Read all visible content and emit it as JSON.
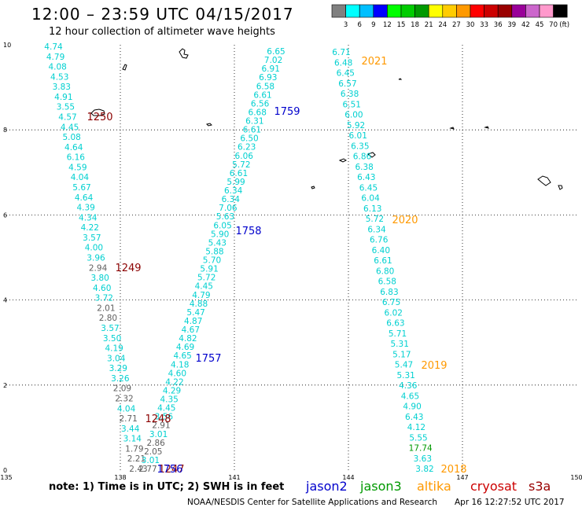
{
  "title": "12:00 – 23:59 UTC 04/15/2017",
  "subtitle": "12 hour collection of altimeter wave heights",
  "colorbar": {
    "colors": [
      "#808080",
      "#00ffff",
      "#00bfff",
      "#0000ff",
      "#00ff00",
      "#00cc00",
      "#009900",
      "#ffff00",
      "#ffcc00",
      "#ff9900",
      "#ff0000",
      "#cc0000",
      "#990000",
      "#990099",
      "#cc66cc",
      "#ff99cc",
      "#000000"
    ],
    "labels": [
      "3",
      "6",
      "9",
      "12",
      "15",
      "18",
      "21",
      "24",
      "27",
      "30",
      "33",
      "36",
      "39",
      "42",
      "45",
      "70",
      "(ft)"
    ]
  },
  "x_ticks": [
    "135",
    "138",
    "141",
    "144",
    "147",
    "150"
  ],
  "y_ticks": [
    "0",
    "2",
    "4",
    "6",
    "8",
    "10"
  ],
  "pass_labels": [
    {
      "text": "1250",
      "color": "#8b0000"
    },
    {
      "text": "1249",
      "color": "#8b0000"
    },
    {
      "text": "1248",
      "color": "#8b0000"
    },
    {
      "text": "1247",
      "color": "#8b0000"
    },
    {
      "text": "1759",
      "color": "#0000cc"
    },
    {
      "text": "1758",
      "color": "#0000cc"
    },
    {
      "text": "1757",
      "color": "#0000cc"
    },
    {
      "text": "1756",
      "color": "#0000cc"
    },
    {
      "text": "2021",
      "color": "#ff9900"
    },
    {
      "text": "2020",
      "color": "#ff9900"
    },
    {
      "text": "2019",
      "color": "#ff9900"
    },
    {
      "text": "2018",
      "color": "#ff9900"
    }
  ],
  "tracks": {
    "cryosat": [
      "4.74",
      "4.79",
      "4.08",
      "4.53",
      "3.83",
      "4.91",
      "3.55",
      "4.57",
      "4.45",
      "5.08",
      "4.64",
      "6.16",
      "4.59",
      "4.04",
      "5.67",
      "4.64",
      "4.39",
      "4.34",
      "4.22",
      "3.57",
      "4.00",
      "3.96",
      "2.94",
      "3.80",
      "4.60",
      "3.72",
      "2.01",
      "2.80",
      "3.57",
      "3.50",
      "4.19",
      "3.04",
      "3.29",
      "3.26",
      "2.09",
      "2.32",
      "4.04",
      "2.71",
      "3.44",
      "3.14",
      "1.79",
      "2.21",
      "2.43"
    ],
    "cryosat_colors": [
      "c",
      "c",
      "c",
      "c",
      "c",
      "c",
      "c",
      "c",
      "c",
      "c",
      "c",
      "c",
      "c",
      "c",
      "c",
      "c",
      "c",
      "c",
      "c",
      "c",
      "c",
      "c",
      "g",
      "c",
      "c",
      "c",
      "g",
      "g",
      "c",
      "c",
      "c",
      "c",
      "c",
      "c",
      "g",
      "g",
      "c",
      "g",
      "c",
      "c",
      "g",
      "g",
      "g"
    ],
    "jason2": [
      "6.65",
      "7.02",
      "6.91",
      "6.93",
      "6.58",
      "6.61",
      "6.56",
      "6.68",
      "6.31",
      "6.61",
      "6.50",
      "6.23",
      "6.06",
      "5.72",
      "6.61",
      "5.99",
      "6.34",
      "6.34",
      "7.06",
      "5.63",
      "6.05",
      "5.90",
      "5.43",
      "5.88",
      "5.70",
      "5.91",
      "5.72",
      "4.45",
      "4.79",
      "4.88",
      "5.47",
      "4.87",
      "4.67",
      "4.82",
      "4.69",
      "4.65",
      "4.18",
      "4.60",
      "4.22",
      "4.29",
      "4.35",
      "4.45",
      "3.56",
      "2.91",
      "3.01",
      "2.86",
      "2.05",
      "3.01",
      "2.77"
    ],
    "jason2_colors": [
      "c",
      "c",
      "c",
      "c",
      "c",
      "c",
      "c",
      "c",
      "c",
      "c",
      "c",
      "c",
      "c",
      "c",
      "c",
      "c",
      "c",
      "c",
      "c",
      "c",
      "c",
      "c",
      "c",
      "c",
      "c",
      "c",
      "c",
      "c",
      "c",
      "c",
      "c",
      "c",
      "c",
      "c",
      "c",
      "c",
      "c",
      "c",
      "c",
      "c",
      "c",
      "c",
      "c",
      "g",
      "c",
      "g",
      "g",
      "c",
      "g"
    ],
    "altika": [
      "6.71",
      "6.48",
      "6.45",
      "6.57",
      "6.38",
      "6.51",
      "6.00",
      "5.92",
      "6.01",
      "6.35",
      "6.86",
      "6.38",
      "6.43",
      "6.45",
      "6.04",
      "6.13",
      "5.72",
      "6.34",
      "6.76",
      "6.40",
      "6.61",
      "6.80",
      "6.58",
      "6.83",
      "6.75",
      "6.02",
      "6.63",
      "5.71",
      "5.31",
      "5.17",
      "5.47",
      "5.31",
      "4.36",
      "4.65",
      "4.90",
      "6.43",
      "4.12",
      "5.55",
      "17.74",
      "3.63",
      "3.82"
    ],
    "altika_colors": [
      "c",
      "c",
      "c",
      "c",
      "c",
      "c",
      "c",
      "c",
      "c",
      "c",
      "c",
      "c",
      "c",
      "c",
      "c",
      "c",
      "c",
      "c",
      "c",
      "c",
      "c",
      "c",
      "c",
      "c",
      "c",
      "c",
      "c",
      "c",
      "c",
      "c",
      "c",
      "c",
      "c",
      "c",
      "c",
      "c",
      "c",
      "c",
      "dg",
      "c",
      "c"
    ]
  },
  "legend": {
    "note": "note:  1) Time is in UTC;  2) SWH is in feet",
    "satellites": [
      {
        "name": "jason2",
        "color": "#0000cc"
      },
      {
        "name": "jason3",
        "color": "#009900"
      },
      {
        "name": "altika",
        "color": "#ff9900"
      },
      {
        "name": "cryosat",
        "color": "#cc0000"
      },
      {
        "name": "s3a",
        "color": "#990000"
      }
    ]
  },
  "credit": "NOAA/NESDIS Center for Satellite Applications and Research",
  "timestamp": "Apr 16 12:27:52 UTC 2017"
}
